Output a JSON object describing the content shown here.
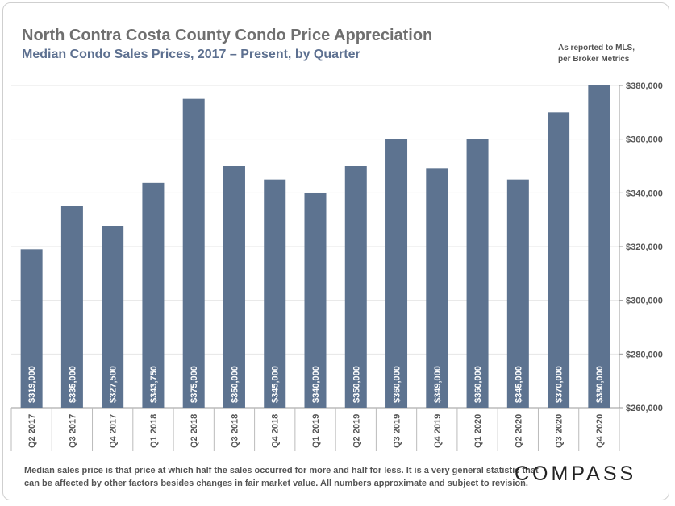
{
  "title": "North Contra Costa County Condo Price Appreciation",
  "subtitle": "Median Condo Sales Prices, 2017 – Present, by Quarter",
  "source_line1": "As reported to MLS,",
  "source_line2": "per Broker Metrics",
  "footnote_line1": "Median sales price is that price at which half the sales occurred for more and half for less. It is a very general statistic that",
  "footnote_line2": "can be affected by other factors besides changes in fair market value. All numbers approximate and subject to revision.",
  "logo_text": "COMPASS",
  "colors": {
    "bar": "#5d7390",
    "text": "#555555",
    "grid": "#e6e6e6"
  },
  "chart_data": {
    "type": "bar",
    "categories": [
      "Q2 2017",
      "Q3 2017",
      "Q4 2017",
      "Q1 2018",
      "Q2 2018",
      "Q3 2018",
      "Q4 2018",
      "Q1 2019",
      "Q2 2019",
      "Q3 2019",
      "Q4 2019",
      "Q1 2020",
      "Q2 2020",
      "Q3 2020",
      "Q4 2020"
    ],
    "values": [
      319000,
      335000,
      327500,
      343750,
      375000,
      350000,
      345000,
      340000,
      350000,
      360000,
      349000,
      360000,
      345000,
      370000,
      380000
    ],
    "value_labels": [
      "$319,000",
      "$335,000",
      "$327,500",
      "$343,750",
      "$375,000",
      "$350,000",
      "$345,000",
      "$340,000",
      "$350,000",
      "$360,000",
      "$349,000",
      "$360,000",
      "$345,000",
      "$370,000",
      "$380,000"
    ],
    "ylim": [
      260000,
      380000
    ],
    "yticks": [
      260000,
      280000,
      300000,
      320000,
      340000,
      360000,
      380000
    ],
    "ytick_labels": [
      "$260,000",
      "$280,000",
      "$300,000",
      "$320,000",
      "$340,000",
      "$360,000",
      "$380,000"
    ],
    "y_axis_position": "right",
    "grid": true,
    "legend": "none"
  }
}
